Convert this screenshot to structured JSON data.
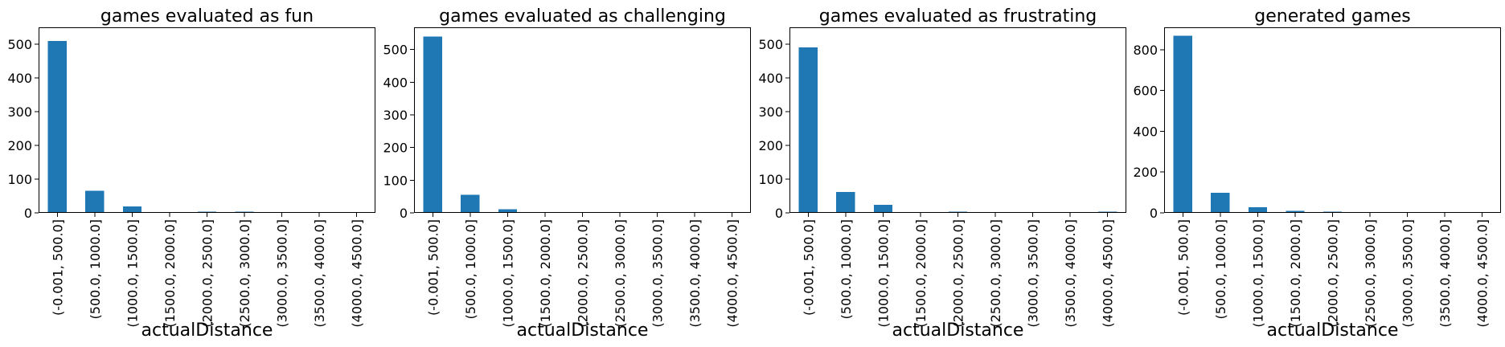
{
  "colors": {
    "bar": "#1f77b4",
    "background": "#ffffff",
    "axis": "#000000"
  },
  "chart_data": [
    {
      "type": "bar",
      "title": "games evaluated as fun",
      "xlabel": "actualDistance",
      "ylabel": "",
      "categories": [
        "(-0.001, 500.0]",
        "(500.0, 1000.0]",
        "(1000.0, 1500.0]",
        "(1500.0, 2000.0]",
        "(2000.0, 2500.0]",
        "(2500.0, 3000.0]",
        "(3000.0, 3500.0]",
        "(3500.0, 4000.0]",
        "(4000.0, 4500.0]"
      ],
      "values": [
        510,
        65,
        19,
        1,
        3,
        3,
        0,
        1,
        0
      ],
      "ylim": [
        0,
        550
      ],
      "yticks": [
        0,
        100,
        200,
        300,
        400,
        500
      ]
    },
    {
      "type": "bar",
      "title": "games evaluated as challenging",
      "xlabel": "actualDistance",
      "ylabel": "",
      "categories": [
        "(-0.001, 500.0]",
        "(500.0, 1000.0]",
        "(1000.0, 1500.0]",
        "(1500.0, 2000.0]",
        "(2000.0, 2500.0]",
        "(2500.0, 3000.0]",
        "(3000.0, 3500.0]",
        "(3500.0, 4000.0]",
        "(4000.0, 4500.0]"
      ],
      "values": [
        540,
        55,
        11,
        0,
        2,
        2,
        0,
        1,
        0
      ],
      "ylim": [
        0,
        568
      ],
      "yticks": [
        0,
        100,
        200,
        300,
        400,
        500
      ]
    },
    {
      "type": "bar",
      "title": "games evaluated as frustrating",
      "xlabel": "actualDistance",
      "ylabel": "",
      "categories": [
        "(-0.001, 500.0]",
        "(500.0, 1000.0]",
        "(1000.0, 1500.0]",
        "(1500.0, 2000.0]",
        "(2000.0, 2500.0]",
        "(2500.0, 3000.0]",
        "(3000.0, 3500.0]",
        "(3500.0, 4000.0]",
        "(4000.0, 4500.0]"
      ],
      "values": [
        490,
        62,
        24,
        1,
        4,
        0,
        0,
        0,
        4
      ],
      "ylim": [
        0,
        550
      ],
      "yticks": [
        0,
        100,
        200,
        300,
        400,
        500
      ]
    },
    {
      "type": "bar",
      "title": "generated games",
      "xlabel": "actualDistance",
      "ylabel": "",
      "categories": [
        "(-0.001, 500.0]",
        "(500.0, 1000.0]",
        "(1000.0, 1500.0]",
        "(1500.0, 2000.0]",
        "(2000.0, 2500.0]",
        "(2500.0, 3000.0]",
        "(3000.0, 3500.0]",
        "(3500.0, 4000.0]",
        "(4000.0, 4500.0]"
      ],
      "values": [
        868,
        98,
        28,
        10,
        5,
        3,
        2,
        2,
        3
      ],
      "ylim": [
        0,
        910
      ],
      "yticks": [
        0,
        200,
        400,
        600,
        800
      ]
    }
  ]
}
